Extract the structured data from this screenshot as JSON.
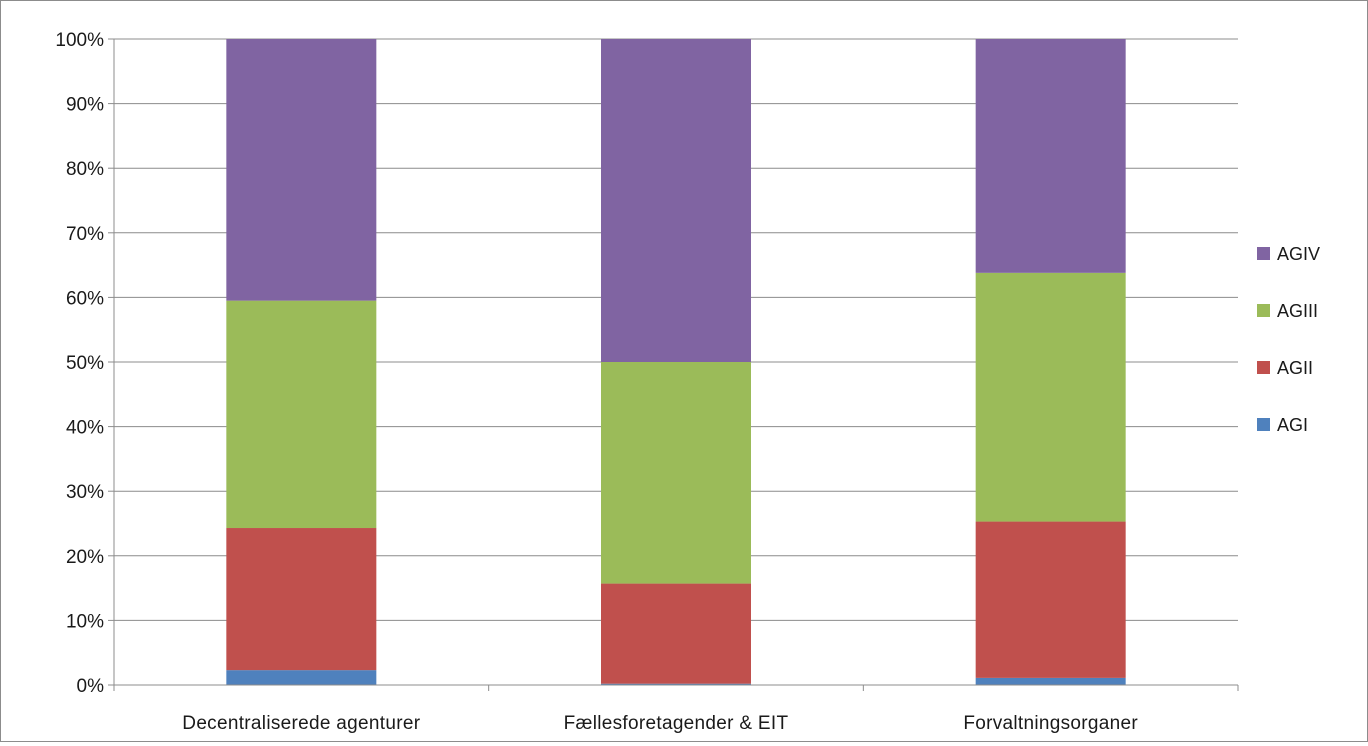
{
  "chart_data": {
    "type": "bar",
    "stacked": true,
    "percent_stacked": true,
    "categories": [
      "Decentraliserede agenturer",
      "Fællesforetagender & EIT",
      "Forvaltningsorganer"
    ],
    "series": [
      {
        "name": "AGI",
        "color": "#4f81bd",
        "values": [
          2.3,
          0.2,
          1.1
        ]
      },
      {
        "name": "AGII",
        "color": "#c0504d",
        "values": [
          22.0,
          15.5,
          24.2
        ]
      },
      {
        "name": "AGIII",
        "color": "#9bbb59",
        "values": [
          35.2,
          34.3,
          38.5
        ]
      },
      {
        "name": "AGIV",
        "color": "#8064a2",
        "values": [
          40.5,
          50.0,
          36.2
        ]
      }
    ],
    "y_ticks": [
      "0%",
      "10%",
      "20%",
      "30%",
      "40%",
      "50%",
      "60%",
      "70%",
      "80%",
      "90%",
      "100%"
    ],
    "ylim": [
      0,
      100
    ],
    "grid": true,
    "legend_position": "right",
    "legend_order": [
      "AGIV",
      "AGIII",
      "AGII",
      "AGI"
    ],
    "title": "",
    "xlabel": "",
    "ylabel": ""
  }
}
